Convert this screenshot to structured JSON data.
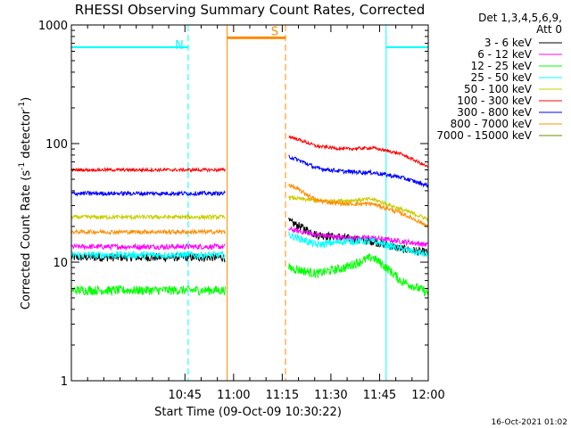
{
  "chart_data": {
    "type": "line",
    "title": "RHESSI Observing Summary Count Rates, Corrected",
    "xlabel": "Start Time (09-Oct-09 10:30:22)",
    "ylabel": "Corrected Count Rate (s⁻¹ detector⁻¹)",
    "ylabel_base": "Corrected Count Rate (s",
    "ylabel_mid": " detector",
    "ylabel_end": ")",
    "ylabel_sup": "-1",
    "yscale": "log",
    "ylim": [
      1,
      1000
    ],
    "xlim_minutes": [
      10,
      120
    ],
    "x_ticks": [
      {
        "t": 45,
        "label": "10:45"
      },
      {
        "t": 60,
        "label": "11:00"
      },
      {
        "t": 75,
        "label": "11:15"
      },
      {
        "t": 90,
        "label": "11:30"
      },
      {
        "t": 105,
        "label": "11:45"
      },
      {
        "t": 120,
        "label": "12:00"
      }
    ],
    "y_ticks": [
      {
        "v": 1,
        "label": "1"
      },
      {
        "v": 10,
        "label": "10"
      },
      {
        "v": 100,
        "label": "100"
      },
      {
        "v": 1000,
        "label": "1000"
      }
    ],
    "legend_header": [
      "Det 1,3,4,5,6,9,",
      "Att 0"
    ],
    "series": [
      {
        "name": "3 - 6 keV",
        "color": "#000000",
        "before": 11,
        "after": [
          22,
          17,
          16,
          15,
          13,
          12
        ],
        "noise": 0.08
      },
      {
        "name": "6 - 12 keV",
        "color": "#ff00ff",
        "before": 13.5,
        "after": [
          19,
          17,
          16,
          16,
          15,
          14
        ],
        "noise": 0.05
      },
      {
        "name": "12 - 25 keV",
        "color": "#00ff00",
        "before": 5.8,
        "after": [
          9,
          8,
          9,
          11,
          7,
          5.5
        ],
        "noise": 0.09
      },
      {
        "name": "25 - 50 keV",
        "color": "#00ffff",
        "before": 11.5,
        "after": [
          17,
          14,
          15,
          15,
          13,
          11.5
        ],
        "noise": 0.07
      },
      {
        "name": "50 - 100 keV",
        "color": "#cccc00",
        "before": 24,
        "after": [
          35,
          33,
          33,
          34,
          28,
          23
        ],
        "noise": 0.04
      },
      {
        "name": "100 - 300 keV",
        "color": "#ff0000",
        "before": 60,
        "after": [
          115,
          95,
          90,
          92,
          82,
          63
        ],
        "noise": 0.03
      },
      {
        "name": "300 - 800 keV",
        "color": "#0000ff",
        "before": 38,
        "after": [
          78,
          62,
          58,
          57,
          52,
          44
        ],
        "noise": 0.04
      },
      {
        "name": "800 - 7000 keV",
        "color": "#ff8c00",
        "before": 18,
        "after": [
          45,
          33,
          31,
          31,
          26,
          20
        ],
        "noise": 0.04
      },
      {
        "name": "7000 - 15000 keV",
        "color": "#6b8e00",
        "before": null,
        "after": null,
        "noise": 0
      }
    ],
    "segments_before_minutes": [
      10,
      57.5
    ],
    "segments_after_minutes": [
      77,
      120
    ],
    "saa_flags": [
      {
        "label": "N",
        "color": "#00ffff",
        "level": 650,
        "from": 10,
        "to": 46
      },
      {
        "label": "S",
        "color": "#ff8c00",
        "level": 780,
        "from": 58,
        "to": 76
      }
    ],
    "night_bar2": {
      "color": "#00ffff",
      "level": 650,
      "from": 107,
      "to": 120
    },
    "vlines": [
      {
        "t": 46,
        "color": "#00ffff",
        "style": "dashed"
      },
      {
        "t": 58,
        "color": "#ff8c00",
        "style": "solid"
      },
      {
        "t": 76,
        "color": "#ff8c00",
        "style": "dashed"
      },
      {
        "t": 107,
        "color": "#00ffff",
        "style": "solid"
      },
      {
        "t": 120,
        "color": "#00ffff",
        "style": "dashed"
      }
    ]
  },
  "footer": {
    "timestamp": "16-Oct-2021 01:02"
  }
}
